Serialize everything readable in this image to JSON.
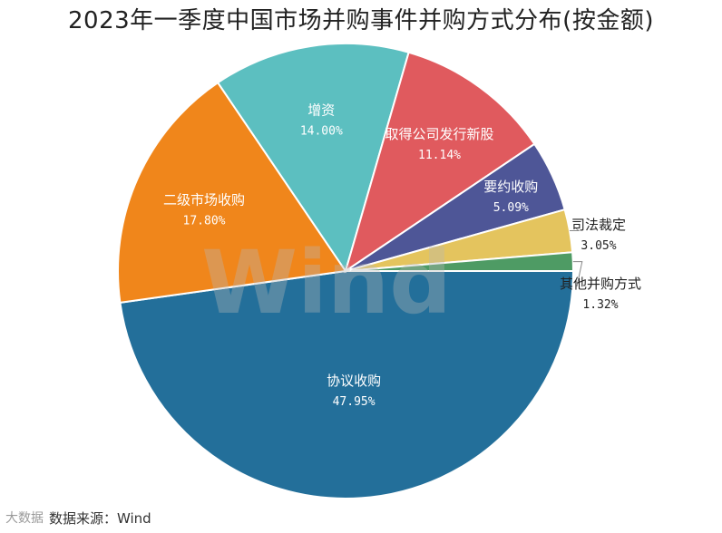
{
  "chart_data": {
    "type": "pie",
    "title": "2023年一季度中国市场并购事件并购方式分布(按金额)",
    "slices": [
      {
        "label": "协议收购",
        "value": 47.95,
        "value_label": "47.95%",
        "color": "#236f9a"
      },
      {
        "label": "二级市场收购",
        "value": 17.8,
        "value_label": "17.80%",
        "color": "#f0861b"
      },
      {
        "label": "增资",
        "value": 14.0,
        "value_label": "14.00%",
        "color": "#5cbfc0"
      },
      {
        "label": "取得公司发行新股",
        "value": 11.14,
        "value_label": "11.14%",
        "color": "#e05a5e"
      },
      {
        "label": "要约收购",
        "value": 5.09,
        "value_label": "5.09%",
        "color": "#4e5697"
      },
      {
        "label": "司法裁定",
        "value": 3.05,
        "value_label": "3.05%",
        "color": "#e4c45e"
      },
      {
        "label": "其他并购方式",
        "value": 1.32,
        "value_label": "1.32%",
        "color": "#4e9b64"
      }
    ]
  },
  "source": "数据来源：Wind",
  "watermark": "Wind",
  "badge": "大数据"
}
